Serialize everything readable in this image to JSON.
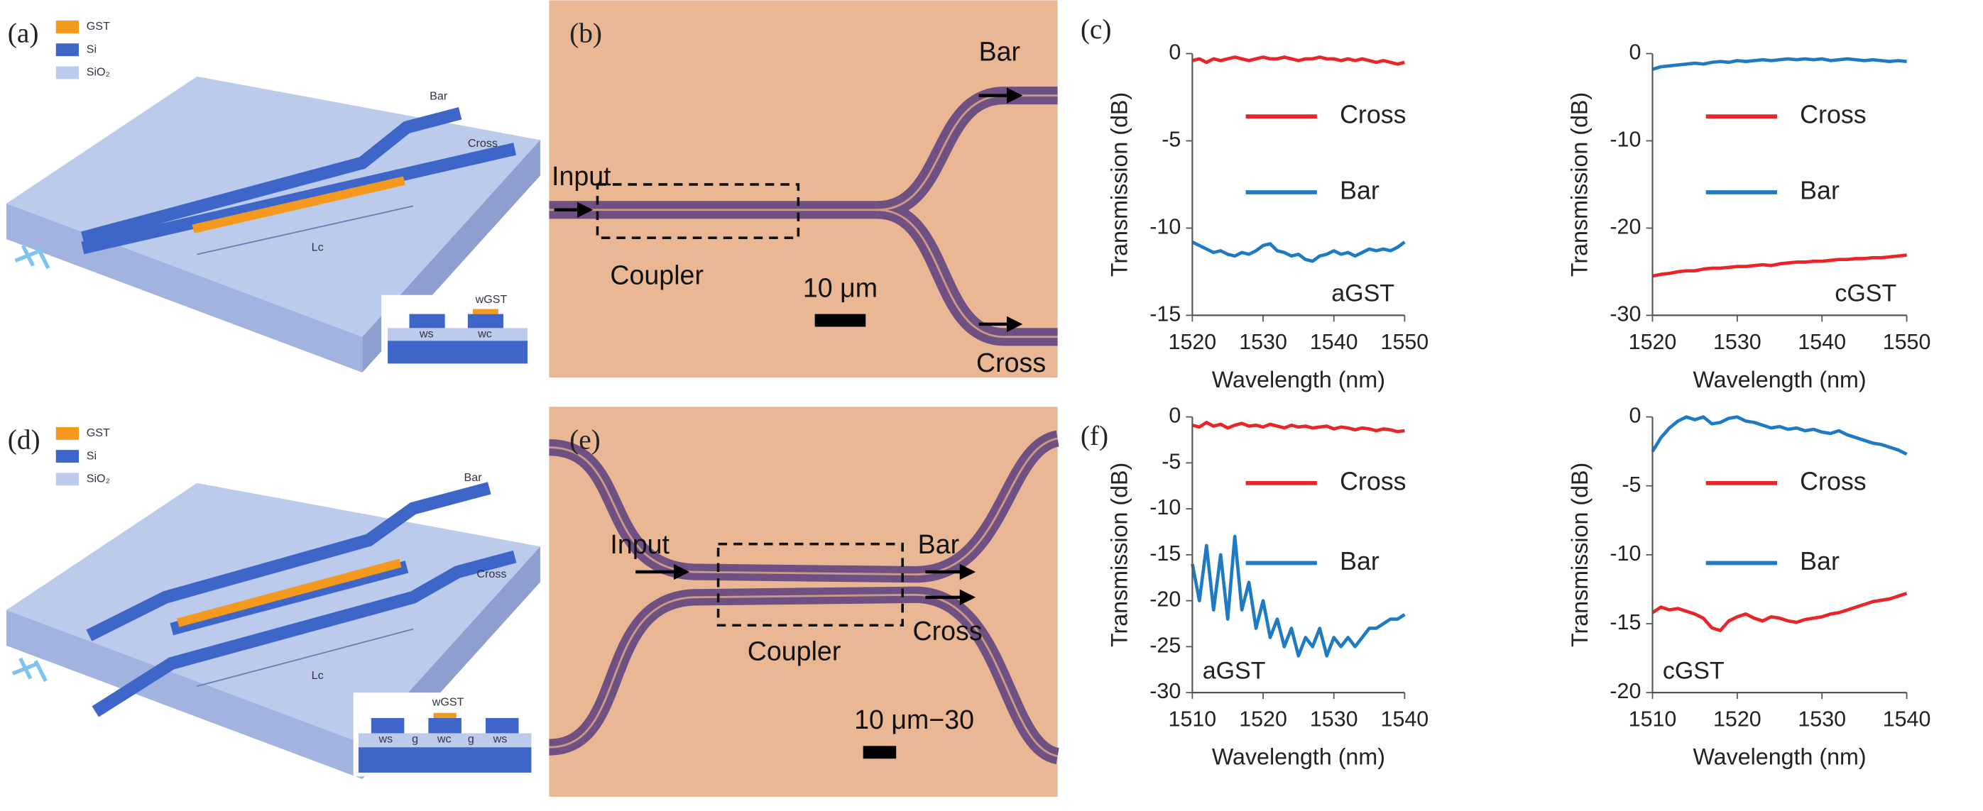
{
  "panel_labels": [
    "(a)",
    "(b)",
    "(c)",
    "(d)",
    "(e)",
    "(f)"
  ],
  "schematic_a": {
    "legend": [
      "GST",
      "Si",
      "SiO₂"
    ],
    "ports": [
      "Bar",
      "Cross"
    ],
    "length_label": "Lc",
    "cross_section": [
      "wGST",
      "ws",
      "wc"
    ]
  },
  "schematic_d": {
    "legend": [
      "GST",
      "Si",
      "SiO₂"
    ],
    "ports": [
      "Bar",
      "Cross"
    ],
    "length_label": "Lc",
    "cross_section": [
      "wGST",
      "ws",
      "g",
      "wc",
      "g",
      "ws"
    ]
  },
  "micrograph_b": {
    "bar": "Bar",
    "input": "Input",
    "coupler": "Coupler",
    "scale": "10 μm",
    "cross": "Cross"
  },
  "micrograph_e": {
    "input": "Input",
    "bar": "Bar",
    "coupler": "Coupler",
    "cross": "Cross",
    "scale": "10 μm−30"
  },
  "chart_data": [
    {
      "type": "line",
      "xlabel": "Wavelength (nm)",
      "ylabel": "Transmission (dB)",
      "annotation": "aGST",
      "annotation_position": "lower right",
      "x": [
        1520,
        1521,
        1522,
        1523,
        1524,
        1525,
        1526,
        1527,
        1528,
        1529,
        1530,
        1531,
        1532,
        1533,
        1534,
        1535,
        1536,
        1537,
        1538,
        1539,
        1540,
        1541,
        1542,
        1543,
        1544,
        1545,
        1546,
        1547,
        1548,
        1549,
        1550
      ],
      "xlim": [
        1520,
        1550
      ],
      "xticks": [
        1520,
        1530,
        1540,
        1550
      ],
      "ylim": [
        -15,
        0
      ],
      "yticks": [
        0,
        -5,
        -10,
        -15
      ],
      "series": [
        {
          "name": "Cross",
          "color": "#e8262a",
          "values": [
            -0.4,
            -0.3,
            -0.5,
            -0.3,
            -0.4,
            -0.3,
            -0.2,
            -0.3,
            -0.4,
            -0.3,
            -0.2,
            -0.3,
            -0.3,
            -0.2,
            -0.3,
            -0.4,
            -0.3,
            -0.3,
            -0.2,
            -0.3,
            -0.3,
            -0.4,
            -0.3,
            -0.4,
            -0.3,
            -0.4,
            -0.5,
            -0.4,
            -0.5,
            -0.6,
            -0.5
          ]
        },
        {
          "name": "Bar",
          "color": "#1f7ac4",
          "values": [
            -10.8,
            -11.0,
            -11.2,
            -11.4,
            -11.3,
            -11.5,
            -11.6,
            -11.4,
            -11.5,
            -11.3,
            -11.0,
            -10.9,
            -11.3,
            -11.4,
            -11.6,
            -11.5,
            -11.8,
            -11.9,
            -11.6,
            -11.5,
            -11.3,
            -11.5,
            -11.4,
            -11.6,
            -11.4,
            -11.2,
            -11.3,
            -11.2,
            -11.3,
            -11.1,
            -10.8
          ]
        }
      ]
    },
    {
      "type": "line",
      "xlabel": "Wavelength (nm)",
      "ylabel": "Transmission (dB)",
      "annotation": "cGST",
      "annotation_position": "lower right",
      "x": [
        1520,
        1521,
        1522,
        1523,
        1524,
        1525,
        1526,
        1527,
        1528,
        1529,
        1530,
        1531,
        1532,
        1533,
        1534,
        1535,
        1536,
        1537,
        1538,
        1539,
        1540,
        1541,
        1542,
        1543,
        1544,
        1545,
        1546,
        1547,
        1548,
        1549,
        1550
      ],
      "xlim": [
        1520,
        1550
      ],
      "xticks": [
        1520,
        1530,
        1540,
        1550
      ],
      "ylim": [
        -30,
        0
      ],
      "yticks": [
        0,
        -10,
        -20,
        -30
      ],
      "series": [
        {
          "name": "Cross",
          "color": "#e8262a",
          "values": [
            -25.5,
            -25.3,
            -25.2,
            -25.0,
            -24.9,
            -24.9,
            -24.7,
            -24.6,
            -24.6,
            -24.5,
            -24.4,
            -24.4,
            -24.3,
            -24.2,
            -24.3,
            -24.1,
            -24.0,
            -23.9,
            -23.9,
            -23.8,
            -23.8,
            -23.7,
            -23.6,
            -23.6,
            -23.5,
            -23.5,
            -23.4,
            -23.4,
            -23.3,
            -23.2,
            -23.1
          ]
        },
        {
          "name": "Bar",
          "color": "#1f7ac4",
          "values": [
            -1.8,
            -1.5,
            -1.4,
            -1.3,
            -1.2,
            -1.1,
            -1.2,
            -1.0,
            -0.9,
            -1.0,
            -0.8,
            -0.9,
            -0.8,
            -0.7,
            -0.8,
            -0.7,
            -0.6,
            -0.7,
            -0.6,
            -0.7,
            -0.6,
            -0.8,
            -0.7,
            -0.6,
            -0.7,
            -0.8,
            -0.7,
            -0.8,
            -0.9,
            -0.8,
            -0.9
          ]
        }
      ]
    },
    {
      "type": "line",
      "xlabel": "Wavelength (nm)",
      "ylabel": "Transmission (dB)",
      "annotation": "aGST",
      "annotation_position": "lower left",
      "x": [
        1510,
        1511,
        1512,
        1513,
        1514,
        1515,
        1516,
        1517,
        1518,
        1519,
        1520,
        1521,
        1522,
        1523,
        1524,
        1525,
        1526,
        1527,
        1528,
        1529,
        1530,
        1531,
        1532,
        1533,
        1534,
        1535,
        1536,
        1537,
        1538,
        1539,
        1540
      ],
      "xlim": [
        1510,
        1540
      ],
      "xticks": [
        1510,
        1520,
        1530,
        1540
      ],
      "ylim": [
        -30,
        0
      ],
      "yticks": [
        0,
        -5,
        -10,
        -15,
        -20,
        -25,
        -30
      ],
      "series": [
        {
          "name": "Cross",
          "color": "#e8262a",
          "values": [
            -0.9,
            -1.1,
            -0.6,
            -1.0,
            -0.8,
            -1.2,
            -0.9,
            -0.7,
            -1.0,
            -0.9,
            -1.1,
            -0.8,
            -1.0,
            -1.2,
            -0.9,
            -1.1,
            -1.0,
            -1.2,
            -1.1,
            -1.0,
            -1.3,
            -1.1,
            -1.2,
            -1.4,
            -1.2,
            -1.3,
            -1.5,
            -1.3,
            -1.4,
            -1.6,
            -1.5
          ]
        },
        {
          "name": "Bar",
          "color": "#1f7ac4",
          "values": [
            -16,
            -20,
            -14,
            -21,
            -15,
            -22,
            -13,
            -21,
            -18,
            -23,
            -20,
            -24,
            -22,
            -25,
            -23,
            -26,
            -24,
            -25,
            -23,
            -26,
            -24,
            -25,
            -24,
            -25,
            -24,
            -23,
            -23,
            -22.5,
            -22,
            -22,
            -21.5
          ]
        }
      ]
    },
    {
      "type": "line",
      "xlabel": "Wavelength (nm)",
      "ylabel": "Transmission (dB)",
      "annotation": "cGST",
      "annotation_position": "lower left",
      "x": [
        1510,
        1511,
        1512,
        1513,
        1514,
        1515,
        1516,
        1517,
        1518,
        1519,
        1520,
        1521,
        1522,
        1523,
        1524,
        1525,
        1526,
        1527,
        1528,
        1529,
        1530,
        1531,
        1532,
        1533,
        1534,
        1535,
        1536,
        1537,
        1538,
        1539,
        1540
      ],
      "xlim": [
        1510,
        1540
      ],
      "xticks": [
        1510,
        1520,
        1530,
        1540
      ],
      "ylim": [
        -20,
        0
      ],
      "yticks": [
        0,
        -5,
        -10,
        -15,
        -20
      ],
      "series": [
        {
          "name": "Cross",
          "color": "#e8262a",
          "values": [
            -14.2,
            -13.8,
            -14.0,
            -13.9,
            -14.1,
            -14.3,
            -14.6,
            -15.3,
            -15.5,
            -14.8,
            -14.5,
            -14.3,
            -14.6,
            -14.8,
            -14.5,
            -14.6,
            -14.8,
            -14.9,
            -14.7,
            -14.6,
            -14.5,
            -14.3,
            -14.2,
            -14.0,
            -13.8,
            -13.6,
            -13.4,
            -13.3,
            -13.2,
            -13.0,
            -12.8
          ]
        },
        {
          "name": "Bar",
          "color": "#1f7ac4",
          "values": [
            -2.5,
            -1.5,
            -0.8,
            -0.3,
            0,
            -0.2,
            0,
            -0.5,
            -0.4,
            -0.1,
            0,
            -0.3,
            -0.4,
            -0.6,
            -0.8,
            -0.7,
            -0.9,
            -0.8,
            -1.0,
            -0.9,
            -1.1,
            -1.2,
            -1.0,
            -1.3,
            -1.5,
            -1.7,
            -1.9,
            -2.0,
            -2.2,
            -2.4,
            -2.7
          ]
        }
      ]
    }
  ]
}
